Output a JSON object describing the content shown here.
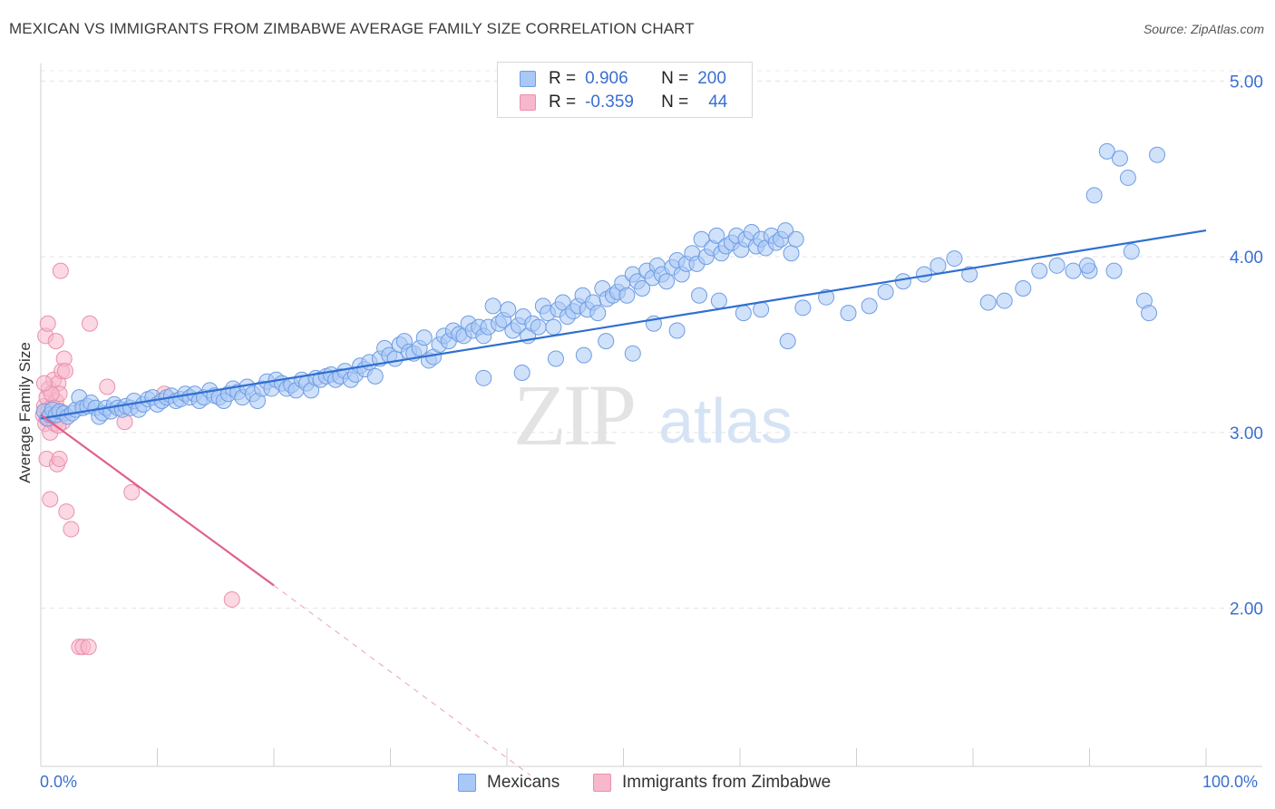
{
  "header": {
    "title": "MEXICAN VS IMMIGRANTS FROM ZIMBABWE AVERAGE FAMILY SIZE CORRELATION CHART",
    "source": "Source: ZipAtlas.com"
  },
  "legend": {
    "rows": [
      {
        "r_label": "R =",
        "r_value": "0.906",
        "n_label": "N =",
        "n_value": "200",
        "color": "#a9c8f5"
      },
      {
        "r_label": "R =",
        "r_value": "-0.359",
        "n_label": "N =",
        "n_value": "44",
        "color": "#f7b8cb"
      }
    ]
  },
  "bottom_legend": {
    "items": [
      {
        "label": "Mexicans",
        "color": "#a9c8f5"
      },
      {
        "label": "Immigrants from Zimbabwe",
        "color": "#f7b8cb"
      }
    ]
  },
  "watermark": {
    "zip": "ZIP",
    "atlas": "atlas"
  },
  "chart_data": {
    "type": "scatter",
    "title": "MEXICAN VS IMMIGRANTS FROM ZIMBABWE AVERAGE FAMILY SIZE CORRELATION CHART",
    "xlabel": "",
    "ylabel": "Average Family Size",
    "xlim": [
      0,
      100
    ],
    "ylim": [
      1.1,
      5.1
    ],
    "x_tick_labels": [
      "0.0%",
      "100.0%"
    ],
    "y_ticks": [
      2.0,
      3.0,
      4.0,
      5.0
    ],
    "y_tick_labels": [
      "2.00",
      "3.00",
      "4.00",
      "5.00"
    ],
    "grid": true,
    "legend_position": "top-center",
    "series": [
      {
        "name": "Mexicans",
        "color": "#a9c8f5",
        "stroke": "#6f9de3",
        "trend": {
          "x": [
            0,
            100
          ],
          "y": [
            3.08,
            4.15
          ],
          "color": "#2f6fd0"
        },
        "points": [
          [
            0.3,
            3.12
          ],
          [
            0.6,
            3.08
          ],
          [
            0.8,
            3.1
          ],
          [
            1.0,
            3.13
          ],
          [
            1.3,
            3.1
          ],
          [
            1.6,
            3.12
          ],
          [
            2.0,
            3.11
          ],
          [
            2.3,
            3.09
          ],
          [
            2.7,
            3.11
          ],
          [
            3.0,
            3.13
          ],
          [
            3.3,
            3.2
          ],
          [
            3.6,
            3.14
          ],
          [
            4.0,
            3.15
          ],
          [
            4.3,
            3.17
          ],
          [
            4.7,
            3.14
          ],
          [
            5.0,
            3.09
          ],
          [
            5.3,
            3.11
          ],
          [
            5.6,
            3.14
          ],
          [
            6.0,
            3.12
          ],
          [
            6.3,
            3.16
          ],
          [
            6.6,
            3.14
          ],
          [
            7.0,
            3.13
          ],
          [
            7.3,
            3.15
          ],
          [
            7.7,
            3.14
          ],
          [
            8.0,
            3.18
          ],
          [
            8.4,
            3.13
          ],
          [
            8.8,
            3.16
          ],
          [
            9.2,
            3.19
          ],
          [
            9.6,
            3.2
          ],
          [
            10.0,
            3.16
          ],
          [
            10.4,
            3.18
          ],
          [
            10.8,
            3.2
          ],
          [
            11.2,
            3.21
          ],
          [
            11.6,
            3.18
          ],
          [
            12.0,
            3.19
          ],
          [
            12.4,
            3.22
          ],
          [
            12.8,
            3.2
          ],
          [
            13.2,
            3.22
          ],
          [
            13.6,
            3.18
          ],
          [
            14.0,
            3.2
          ],
          [
            14.5,
            3.24
          ],
          [
            14.9,
            3.21
          ],
          [
            15.3,
            3.2
          ],
          [
            15.7,
            3.18
          ],
          [
            16.1,
            3.22
          ],
          [
            16.5,
            3.25
          ],
          [
            16.9,
            3.23
          ],
          [
            17.3,
            3.2
          ],
          [
            17.7,
            3.26
          ],
          [
            18.2,
            3.22
          ],
          [
            18.6,
            3.18
          ],
          [
            19.0,
            3.25
          ],
          [
            19.4,
            3.29
          ],
          [
            19.8,
            3.25
          ],
          [
            20.2,
            3.3
          ],
          [
            20.7,
            3.28
          ],
          [
            21.1,
            3.25
          ],
          [
            21.5,
            3.27
          ],
          [
            21.9,
            3.24
          ],
          [
            22.4,
            3.3
          ],
          [
            22.8,
            3.28
          ],
          [
            23.2,
            3.24
          ],
          [
            23.6,
            3.31
          ],
          [
            24.0,
            3.3
          ],
          [
            24.5,
            3.32
          ],
          [
            24.9,
            3.33
          ],
          [
            25.3,
            3.3
          ],
          [
            25.7,
            3.32
          ],
          [
            26.1,
            3.35
          ],
          [
            26.6,
            3.3
          ],
          [
            27.0,
            3.33
          ],
          [
            27.4,
            3.38
          ],
          [
            27.8,
            3.36
          ],
          [
            28.2,
            3.4
          ],
          [
            28.7,
            3.32
          ],
          [
            29.1,
            3.42
          ],
          [
            29.5,
            3.48
          ],
          [
            29.9,
            3.44
          ],
          [
            30.4,
            3.42
          ],
          [
            30.8,
            3.5
          ],
          [
            31.2,
            3.52
          ],
          [
            31.6,
            3.46
          ],
          [
            32.0,
            3.45
          ],
          [
            32.5,
            3.48
          ],
          [
            32.9,
            3.54
          ],
          [
            33.3,
            3.41
          ],
          [
            33.7,
            3.43
          ],
          [
            34.2,
            3.5
          ],
          [
            34.6,
            3.55
          ],
          [
            35.0,
            3.52
          ],
          [
            35.4,
            3.58
          ],
          [
            35.9,
            3.56
          ],
          [
            36.3,
            3.55
          ],
          [
            36.7,
            3.62
          ],
          [
            37.1,
            3.58
          ],
          [
            37.6,
            3.6
          ],
          [
            38.0,
            3.55
          ],
          [
            38.4,
            3.6
          ],
          [
            38.8,
            3.72
          ],
          [
            39.3,
            3.62
          ],
          [
            39.7,
            3.64
          ],
          [
            40.1,
            3.7
          ],
          [
            40.5,
            3.58
          ],
          [
            41.0,
            3.61
          ],
          [
            41.4,
            3.66
          ],
          [
            41.8,
            3.55
          ],
          [
            42.2,
            3.62
          ],
          [
            42.7,
            3.6
          ],
          [
            43.1,
            3.72
          ],
          [
            43.5,
            3.68
          ],
          [
            44.0,
            3.6
          ],
          [
            44.4,
            3.7
          ],
          [
            44.8,
            3.74
          ],
          [
            45.2,
            3.66
          ],
          [
            45.7,
            3.69
          ],
          [
            46.1,
            3.72
          ],
          [
            46.5,
            3.78
          ],
          [
            46.9,
            3.7
          ],
          [
            47.4,
            3.74
          ],
          [
            47.8,
            3.68
          ],
          [
            48.2,
            3.82
          ],
          [
            48.6,
            3.76
          ],
          [
            49.1,
            3.78
          ],
          [
            49.5,
            3.8
          ],
          [
            49.9,
            3.85
          ],
          [
            50.3,
            3.78
          ],
          [
            50.8,
            3.9
          ],
          [
            51.2,
            3.86
          ],
          [
            51.6,
            3.82
          ],
          [
            52.0,
            3.92
          ],
          [
            52.5,
            3.88
          ],
          [
            52.9,
            3.95
          ],
          [
            53.3,
            3.9
          ],
          [
            53.7,
            3.86
          ],
          [
            54.2,
            3.94
          ],
          [
            54.6,
            3.98
          ],
          [
            55.0,
            3.9
          ],
          [
            55.4,
            3.96
          ],
          [
            55.9,
            4.02
          ],
          [
            56.3,
            3.96
          ],
          [
            56.7,
            4.1
          ],
          [
            57.1,
            4.0
          ],
          [
            57.6,
            4.05
          ],
          [
            58.0,
            4.12
          ],
          [
            58.4,
            4.02
          ],
          [
            58.8,
            4.06
          ],
          [
            59.3,
            4.08
          ],
          [
            59.7,
            4.12
          ],
          [
            60.1,
            4.04
          ],
          [
            60.5,
            4.1
          ],
          [
            61.0,
            4.14
          ],
          [
            61.4,
            4.06
          ],
          [
            61.8,
            4.1
          ],
          [
            62.2,
            4.05
          ],
          [
            62.7,
            4.12
          ],
          [
            63.1,
            4.08
          ],
          [
            63.5,
            4.1
          ],
          [
            63.9,
            4.15
          ],
          [
            64.4,
            4.02
          ],
          [
            64.8,
            4.1
          ],
          [
            38.0,
            3.31
          ],
          [
            41.3,
            3.34
          ],
          [
            44.2,
            3.42
          ],
          [
            46.6,
            3.44
          ],
          [
            48.5,
            3.52
          ],
          [
            50.8,
            3.45
          ],
          [
            52.6,
            3.62
          ],
          [
            54.6,
            3.58
          ],
          [
            56.5,
            3.78
          ],
          [
            58.2,
            3.75
          ],
          [
            60.3,
            3.68
          ],
          [
            61.8,
            3.7
          ],
          [
            64.1,
            3.52
          ],
          [
            65.4,
            3.71
          ],
          [
            67.4,
            3.77
          ],
          [
            69.3,
            3.68
          ],
          [
            71.1,
            3.72
          ],
          [
            72.5,
            3.8
          ],
          [
            74.0,
            3.86
          ],
          [
            75.8,
            3.9
          ],
          [
            77.0,
            3.95
          ],
          [
            78.4,
            3.99
          ],
          [
            79.7,
            3.9
          ],
          [
            81.3,
            3.74
          ],
          [
            82.7,
            3.75
          ],
          [
            84.3,
            3.82
          ],
          [
            85.7,
            3.92
          ],
          [
            87.2,
            3.95
          ],
          [
            88.6,
            3.92
          ],
          [
            90.0,
            3.92
          ],
          [
            91.5,
            4.6
          ],
          [
            92.6,
            4.56
          ],
          [
            93.3,
            4.45
          ],
          [
            95.8,
            4.58
          ],
          [
            90.4,
            4.35
          ],
          [
            93.6,
            4.03
          ],
          [
            92.1,
            3.92
          ],
          [
            94.7,
            3.75
          ],
          [
            95.1,
            3.68
          ],
          [
            89.8,
            3.95
          ]
        ]
      },
      {
        "name": "Immigrants from Zimbabwe",
        "color": "#f7b8cb",
        "stroke": "#ea8fad",
        "trend": {
          "x": [
            0,
            20
          ],
          "y": [
            3.1,
            2.13
          ],
          "color": "#e0608c",
          "dashed_to": [
            42,
            1.05
          ]
        },
        "points": [
          [
            0.2,
            3.1
          ],
          [
            0.3,
            3.15
          ],
          [
            0.4,
            3.05
          ],
          [
            0.5,
            3.08
          ],
          [
            0.5,
            3.2
          ],
          [
            0.6,
            3.12
          ],
          [
            0.7,
            3.25
          ],
          [
            0.8,
            3.0
          ],
          [
            0.9,
            3.08
          ],
          [
            1.0,
            3.15
          ],
          [
            1.1,
            3.3
          ],
          [
            1.2,
            3.05
          ],
          [
            1.3,
            3.18
          ],
          [
            1.4,
            3.1
          ],
          [
            1.5,
            3.28
          ],
          [
            1.6,
            3.22
          ],
          [
            1.7,
            3.12
          ],
          [
            1.8,
            3.35
          ],
          [
            1.9,
            3.06
          ],
          [
            2.0,
            3.42
          ],
          [
            0.4,
            3.55
          ],
          [
            0.6,
            3.62
          ],
          [
            0.5,
            2.85
          ],
          [
            0.8,
            2.62
          ],
          [
            1.4,
            2.82
          ],
          [
            1.6,
            2.85
          ],
          [
            2.2,
            2.55
          ],
          [
            2.6,
            2.45
          ],
          [
            1.7,
            3.92
          ],
          [
            4.2,
            3.62
          ],
          [
            5.7,
            3.26
          ],
          [
            7.2,
            3.06
          ],
          [
            7.8,
            2.66
          ],
          [
            10.6,
            3.22
          ],
          [
            16.4,
            2.05
          ],
          [
            3.3,
            1.78
          ],
          [
            3.6,
            1.78
          ],
          [
            4.1,
            1.78
          ],
          [
            1.3,
            3.52
          ],
          [
            2.1,
            3.35
          ],
          [
            0.9,
            3.22
          ],
          [
            1.5,
            3.04
          ],
          [
            0.3,
            3.28
          ],
          [
            1.1,
            3.14
          ]
        ]
      }
    ]
  }
}
